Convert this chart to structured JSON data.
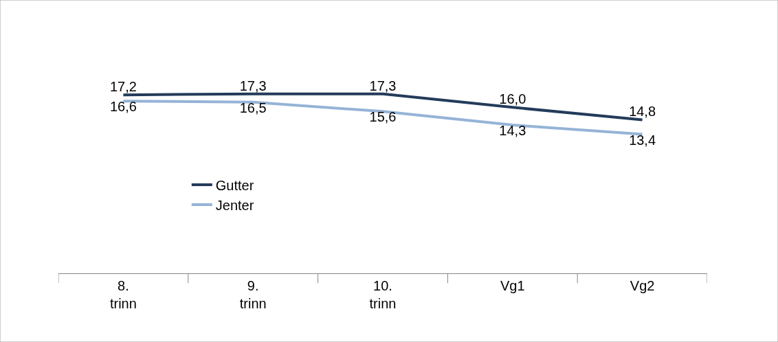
{
  "chart_data": {
    "type": "line",
    "categories": [
      "8.\ntrinn",
      "9.\ntrinn",
      "10.\ntrinn",
      "Vg1",
      "Vg2"
    ],
    "series": [
      {
        "name": "Gutter",
        "color": "#243b5a",
        "values": [
          17.2,
          17.3,
          17.3,
          16.0,
          14.8
        ],
        "value_labels": [
          "17,2",
          "17,3",
          "17,3",
          "16,0",
          "14,8"
        ]
      },
      {
        "name": "Jenter",
        "color": "#95b3d7",
        "values": [
          16.6,
          16.5,
          15.6,
          14.3,
          13.4
        ],
        "value_labels": [
          "16,6",
          "16,5",
          "15,6",
          "14,3",
          "13,4"
        ]
      }
    ],
    "legend": "left",
    "marker": "none",
    "line_style": "solid"
  }
}
